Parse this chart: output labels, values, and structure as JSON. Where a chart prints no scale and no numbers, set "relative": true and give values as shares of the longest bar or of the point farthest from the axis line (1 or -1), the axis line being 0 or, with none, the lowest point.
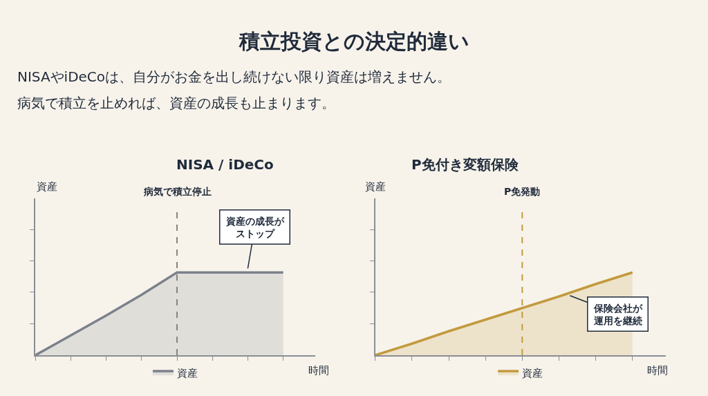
{
  "chart_data": [
    {
      "type": "other",
      "title": "積立投資との決定的違い",
      "subtitle": "NISAやiDeCoは、自分がお金を出し続けない限り資産は増えません。",
      "annotations": [
        "病気で積立を止めれば、資産の成長も止まります。"
      ]
    },
    {
      "type": "area",
      "title": "NISA / iDeCo",
      "ylabel": "資産",
      "xlabel": "時間",
      "relative": true,
      "categories": [
        null,
        null,
        null,
        null,
        null,
        null,
        null,
        null
      ],
      "series": [
        {
          "name": "資産",
          "color": "#7b818b",
          "values": [
            0,
            0.24,
            0.48,
            0.73,
            1,
            1,
            1,
            1
          ]
        }
      ],
      "annotations": [
        "病気で積立停止",
        "資産の成長がストップ"
      ],
      "legend": "bottom",
      "grid": false
    },
    {
      "type": "area",
      "title": "P免付き変額保険",
      "ylabel": "資産",
      "xlabel": "時間",
      "relative": true,
      "categories": [
        null,
        null,
        null,
        null,
        null,
        null,
        null,
        null
      ],
      "series": [
        {
          "name": "資産",
          "color": "#c29a3e",
          "values": [
            0,
            0.14,
            0.29,
            0.43,
            0.57,
            0.71,
            0.86,
            1
          ]
        }
      ],
      "annotations": [
        "P免発動",
        "保険会社が運用を継続"
      ],
      "legend": "bottom",
      "grid": false
    }
  ]
}
